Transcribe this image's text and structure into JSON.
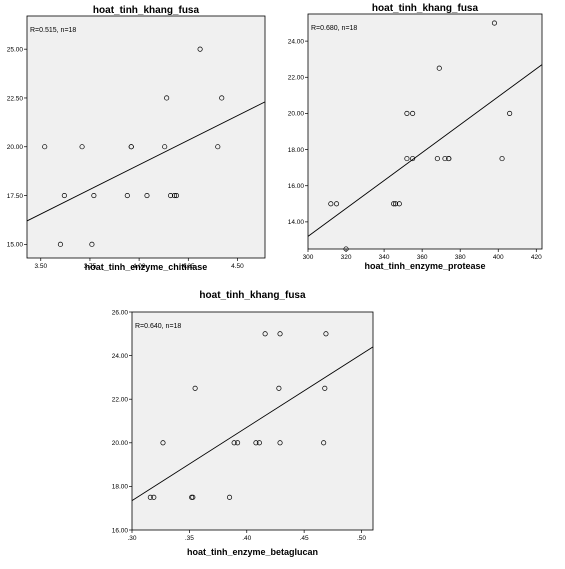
{
  "chart_data": [
    {
      "type": "scatter",
      "title": "hoat_tinh_khang_fusa",
      "xlabel": "hoat_tinh_enzyme_chitinase",
      "ylabel": "",
      "annotation": "R=0.515, n=18",
      "xlim": [
        3.43,
        4.64
      ],
      "ylim": [
        14.3,
        26.7
      ],
      "xticks": [
        3.5,
        3.75,
        4.0,
        4.25,
        4.5
      ],
      "xtick_labels": [
        "3.50",
        "3.75",
        "4.00",
        "4.25",
        "4.50"
      ],
      "yticks": [
        15,
        17.5,
        20,
        22.5,
        25
      ],
      "ytick_labels": [
        "15.00",
        "17.50",
        "20.00",
        "22.50",
        "25.00"
      ],
      "grid": false,
      "x": [
        3.52,
        3.62,
        3.6,
        3.71,
        3.76,
        3.77,
        3.94,
        3.96,
        3.96,
        4.04,
        4.13,
        4.14,
        4.16,
        4.18,
        4.19,
        4.31,
        4.4,
        4.42
      ],
      "y": [
        20.0,
        17.5,
        15.0,
        20.0,
        15.0,
        17.5,
        17.5,
        20.0,
        20.0,
        17.5,
        20.0,
        22.5,
        17.5,
        17.5,
        17.5,
        25.0,
        20.0,
        22.5
      ],
      "fit_line": {
        "x": [
          3.43,
          4.64
        ],
        "y": [
          16.2,
          22.3
        ]
      }
    },
    {
      "type": "scatter",
      "title": "hoat_tinh_khang_fusa",
      "xlabel": "hoat_tinh_enzyme_protease",
      "ylabel": "",
      "annotation": "R=0.680, n=18",
      "xlim": [
        0.3,
        0.423
      ],
      "ylim": [
        12.5,
        25.5
      ],
      "xticks": [
        0.3,
        0.32,
        0.34,
        0.36,
        0.38,
        0.4,
        0.42
      ],
      "xtick_labels": [
        "300",
        "320",
        "340",
        "360",
        "380",
        "400",
        "420"
      ],
      "yticks": [
        14,
        16,
        18,
        20,
        22,
        24
      ],
      "ytick_labels": [
        "14.00",
        "16.00",
        "18.00",
        "20.00",
        "22.00",
        "24.00"
      ],
      "grid": false,
      "x": [
        0.312,
        0.315,
        0.32,
        0.345,
        0.346,
        0.348,
        0.352,
        0.352,
        0.355,
        0.355,
        0.368,
        0.369,
        0.372,
        0.374,
        0.374,
        0.398,
        0.402,
        0.406
      ],
      "y": [
        15.0,
        15.0,
        12.5,
        15.0,
        15.0,
        15.0,
        17.5,
        20.0,
        20.0,
        17.5,
        17.5,
        22.5,
        17.5,
        17.5,
        17.5,
        25.0,
        17.5,
        20.0
      ],
      "fit_line": {
        "x": [
          0.3,
          0.423
        ],
        "y": [
          13.2,
          22.7
        ]
      }
    },
    {
      "type": "scatter",
      "title": "hoat_tinh_khang_fusa",
      "xlabel": "hoat_tinh_enzyme_betaglucan",
      "ylabel": "",
      "annotation": "R=0.640, n=18",
      "xlim": [
        0.3,
        0.51
      ],
      "ylim": [
        16.0,
        26.0
      ],
      "xticks": [
        0.3,
        0.35,
        0.4,
        0.45,
        0.5
      ],
      "xtick_labels": [
        ".30",
        ".35",
        ".40",
        ".45",
        ".50"
      ],
      "yticks": [
        16,
        18,
        20,
        22,
        24,
        26
      ],
      "ytick_labels": [
        "16.00",
        "18.00",
        "20.00",
        "22.00",
        "24.00",
        "26.00"
      ],
      "grid": false,
      "x": [
        0.316,
        0.319,
        0.327,
        0.352,
        0.353,
        0.355,
        0.385,
        0.389,
        0.392,
        0.408,
        0.411,
        0.416,
        0.428,
        0.429,
        0.429,
        0.467,
        0.468,
        0.469
      ],
      "y": [
        17.5,
        17.5,
        20.0,
        17.5,
        17.5,
        22.5,
        17.5,
        20.0,
        20.0,
        20.0,
        20.0,
        25.0,
        22.5,
        25.0,
        20.0,
        20.0,
        22.5,
        25.0
      ],
      "fit_line": {
        "x": [
          0.3,
          0.51
        ],
        "y": [
          17.35,
          24.4
        ]
      }
    }
  ]
}
